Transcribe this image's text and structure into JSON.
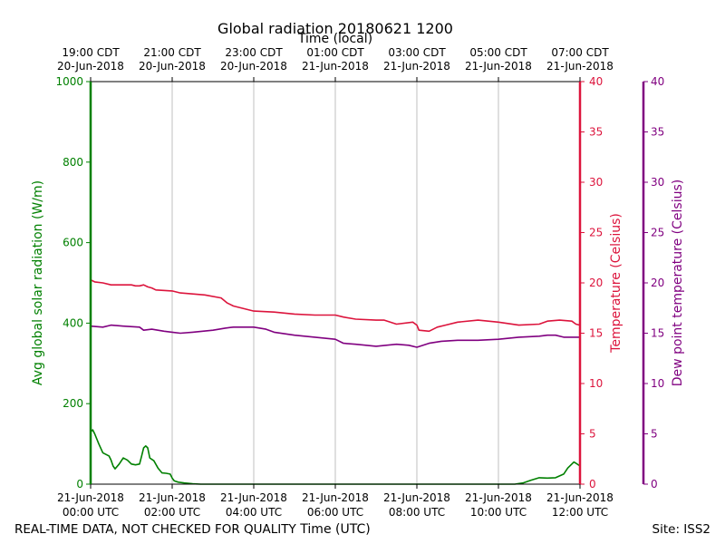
{
  "chart_data": {
    "type": "line",
    "title": "Global radiation 20180621 1200",
    "top_axis_label": "Time (local)",
    "xlabel": "Time (UTC)",
    "footer_left": "REAL-TIME DATA, NOT CHECKED FOR QUALITY",
    "footer_right": "Site: ISS2",
    "x_range_hours": [
      0,
      12
    ],
    "x_ticks": [
      {
        "hour": 0,
        "utc": [
          "21-Jun-2018",
          "00:00 UTC"
        ],
        "local": [
          "19:00 CDT",
          "20-Jun-2018"
        ]
      },
      {
        "hour": 2,
        "utc": [
          "21-Jun-2018",
          "02:00 UTC"
        ],
        "local": [
          "21:00 CDT",
          "20-Jun-2018"
        ]
      },
      {
        "hour": 4,
        "utc": [
          "21-Jun-2018",
          "04:00 UTC"
        ],
        "local": [
          "23:00 CDT",
          "20-Jun-2018"
        ]
      },
      {
        "hour": 6,
        "utc": [
          "21-Jun-2018",
          "06:00 UTC"
        ],
        "local": [
          "01:00 CDT",
          "21-Jun-2018"
        ]
      },
      {
        "hour": 8,
        "utc": [
          "21-Jun-2018",
          "08:00 UTC"
        ],
        "local": [
          "03:00 CDT",
          "21-Jun-2018"
        ]
      },
      {
        "hour": 10,
        "utc": [
          "21-Jun-2018",
          "10:00 UTC"
        ],
        "local": [
          "05:00 CDT",
          "21-Jun-2018"
        ]
      },
      {
        "hour": 12,
        "utc": [
          "21-Jun-2018",
          "12:00 UTC"
        ],
        "local": [
          "07:00 CDT",
          "21-Jun-2018"
        ]
      }
    ],
    "grid": true,
    "axes": {
      "radiation": {
        "label": "Avg global solar radiation (W/m)",
        "ylim": [
          0,
          1000
        ],
        "ticks": [
          0,
          200,
          400,
          600,
          800,
          1000
        ],
        "color": "#008000"
      },
      "temperature": {
        "label": "Temperature (Celsius)",
        "ylim": [
          0,
          40
        ],
        "ticks": [
          0,
          5,
          10,
          15,
          20,
          25,
          30,
          35,
          40
        ],
        "color": "#dc143c"
      },
      "dewpoint": {
        "label": "Dew point temperature (Celsius)",
        "ylim": [
          0,
          40
        ],
        "ticks": [
          0,
          5,
          10,
          15,
          20,
          25,
          30,
          35,
          40
        ],
        "color": "#800080"
      }
    },
    "series": [
      {
        "key": "radiation",
        "axis": "radiation",
        "color": "#008000",
        "points": [
          [
            0,
            130
          ],
          [
            0.05,
            135
          ],
          [
            0.1,
            125
          ],
          [
            0.2,
            100
          ],
          [
            0.3,
            78
          ],
          [
            0.45,
            70
          ],
          [
            0.5,
            60
          ],
          [
            0.55,
            45
          ],
          [
            0.6,
            38
          ],
          [
            0.7,
            50
          ],
          [
            0.8,
            65
          ],
          [
            0.9,
            60
          ],
          [
            1.0,
            50
          ],
          [
            1.1,
            48
          ],
          [
            1.2,
            50
          ],
          [
            1.25,
            70
          ],
          [
            1.3,
            90
          ],
          [
            1.35,
            95
          ],
          [
            1.4,
            90
          ],
          [
            1.45,
            65
          ],
          [
            1.55,
            58
          ],
          [
            1.65,
            40
          ],
          [
            1.75,
            28
          ],
          [
            1.85,
            27
          ],
          [
            1.95,
            25
          ],
          [
            2.0,
            15
          ],
          [
            2.05,
            8
          ],
          [
            2.15,
            5
          ],
          [
            2.3,
            3
          ],
          [
            2.5,
            1
          ],
          [
            2.7,
            0
          ],
          [
            5,
            0
          ],
          [
            9,
            0
          ],
          [
            10.4,
            0
          ],
          [
            10.6,
            3
          ],
          [
            10.8,
            10
          ],
          [
            11.0,
            16
          ],
          [
            11.2,
            15
          ],
          [
            11.4,
            16
          ],
          [
            11.6,
            25
          ],
          [
            11.7,
            40
          ],
          [
            11.8,
            50
          ],
          [
            11.85,
            55
          ],
          [
            11.9,
            52
          ],
          [
            12.0,
            45
          ]
        ]
      },
      {
        "key": "temperature",
        "axis": "temperature",
        "color": "#dc143c",
        "points": [
          [
            0,
            20.3
          ],
          [
            0.1,
            20.1
          ],
          [
            0.3,
            20.0
          ],
          [
            0.5,
            19.8
          ],
          [
            1.0,
            19.8
          ],
          [
            1.1,
            19.7
          ],
          [
            1.2,
            19.7
          ],
          [
            1.3,
            19.8
          ],
          [
            1.4,
            19.6
          ],
          [
            1.5,
            19.5
          ],
          [
            1.6,
            19.3
          ],
          [
            2.0,
            19.2
          ],
          [
            2.2,
            19.0
          ],
          [
            2.5,
            18.9
          ],
          [
            2.8,
            18.8
          ],
          [
            3.2,
            18.5
          ],
          [
            3.35,
            18.0
          ],
          [
            3.5,
            17.7
          ],
          [
            3.6,
            17.6
          ],
          [
            3.8,
            17.4
          ],
          [
            4.0,
            17.2
          ],
          [
            4.5,
            17.1
          ],
          [
            5.0,
            16.9
          ],
          [
            5.5,
            16.8
          ],
          [
            6.0,
            16.8
          ],
          [
            6.2,
            16.6
          ],
          [
            6.5,
            16.4
          ],
          [
            7.0,
            16.3
          ],
          [
            7.2,
            16.3
          ],
          [
            7.5,
            15.9
          ],
          [
            7.9,
            16.1
          ],
          [
            8.0,
            15.8
          ],
          [
            8.05,
            15.3
          ],
          [
            8.3,
            15.2
          ],
          [
            8.5,
            15.6
          ],
          [
            8.7,
            15.8
          ],
          [
            9.0,
            16.1
          ],
          [
            9.5,
            16.3
          ],
          [
            10.0,
            16.1
          ],
          [
            10.5,
            15.8
          ],
          [
            11.0,
            15.9
          ],
          [
            11.2,
            16.2
          ],
          [
            11.5,
            16.3
          ],
          [
            11.8,
            16.2
          ],
          [
            11.9,
            15.9
          ],
          [
            12.0,
            15.8
          ]
        ]
      },
      {
        "key": "dewpoint",
        "axis": "dewpoint",
        "color": "#800080",
        "points": [
          [
            0,
            15.7
          ],
          [
            0.3,
            15.6
          ],
          [
            0.5,
            15.8
          ],
          [
            0.8,
            15.7
          ],
          [
            1.2,
            15.6
          ],
          [
            1.3,
            15.3
          ],
          [
            1.5,
            15.4
          ],
          [
            1.8,
            15.2
          ],
          [
            2.0,
            15.1
          ],
          [
            2.2,
            15.0
          ],
          [
            2.5,
            15.1
          ],
          [
            3.0,
            15.3
          ],
          [
            3.3,
            15.5
          ],
          [
            3.5,
            15.6
          ],
          [
            4.0,
            15.6
          ],
          [
            4.3,
            15.4
          ],
          [
            4.5,
            15.1
          ],
          [
            5.0,
            14.8
          ],
          [
            5.5,
            14.6
          ],
          [
            6.0,
            14.4
          ],
          [
            6.2,
            14.0
          ],
          [
            6.5,
            13.9
          ],
          [
            7.0,
            13.7
          ],
          [
            7.5,
            13.9
          ],
          [
            7.8,
            13.8
          ],
          [
            8.0,
            13.6
          ],
          [
            8.3,
            14.0
          ],
          [
            8.6,
            14.2
          ],
          [
            9.0,
            14.3
          ],
          [
            9.5,
            14.3
          ],
          [
            10.0,
            14.4
          ],
          [
            10.5,
            14.6
          ],
          [
            11.0,
            14.7
          ],
          [
            11.2,
            14.8
          ],
          [
            11.4,
            14.8
          ],
          [
            11.6,
            14.6
          ],
          [
            12.0,
            14.6
          ]
        ]
      }
    ]
  }
}
